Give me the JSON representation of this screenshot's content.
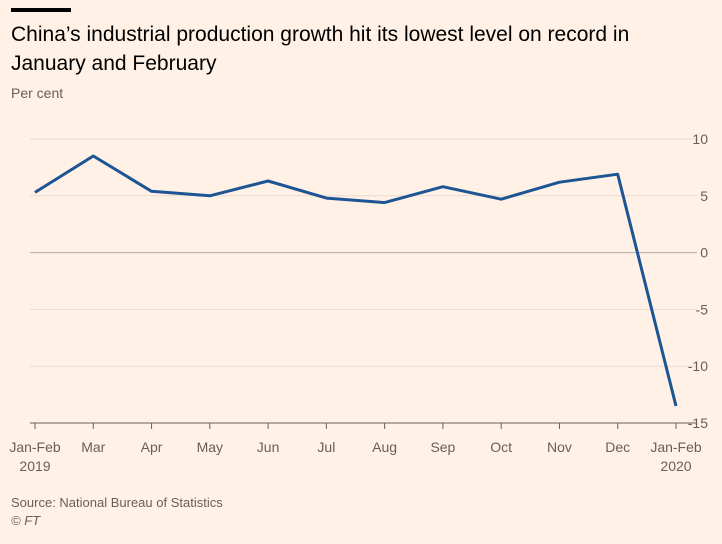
{
  "header": {
    "title": "China’s industrial production growth hit its lowest level on record in January and February",
    "subtitle": "Per cent"
  },
  "footer": {
    "source": "Source: National Bureau of Statistics",
    "copyright": "© FT"
  },
  "colors": {
    "line": "#1d5494",
    "grid": "#e8dbd0",
    "zero": "#b3aaa3",
    "background": "#fff1e5"
  },
  "chart_data": {
    "type": "line",
    "categories": [
      [
        "Jan-Feb",
        "2019"
      ],
      [
        "Mar"
      ],
      [
        "Apr"
      ],
      [
        "May"
      ],
      [
        "Jun"
      ],
      [
        "Jul"
      ],
      [
        "Aug"
      ],
      [
        "Sep"
      ],
      [
        "Oct"
      ],
      [
        "Nov"
      ],
      [
        "Dec"
      ],
      [
        "Jan-Feb",
        "2020"
      ]
    ],
    "series": [
      {
        "values": [
          5.3,
          8.5,
          5.4,
          5.0,
          6.3,
          4.8,
          4.4,
          5.8,
          4.7,
          6.2,
          6.9,
          -13.5
        ]
      }
    ],
    "ylim": [
      -15,
      10
    ],
    "yticks": [
      10,
      5,
      0,
      -5,
      -10,
      -15
    ],
    "ytick_labels": [
      "10",
      "5",
      "0",
      "-5",
      "-10",
      "-15"
    ],
    "yaxis_position": "right",
    "grid": true
  }
}
